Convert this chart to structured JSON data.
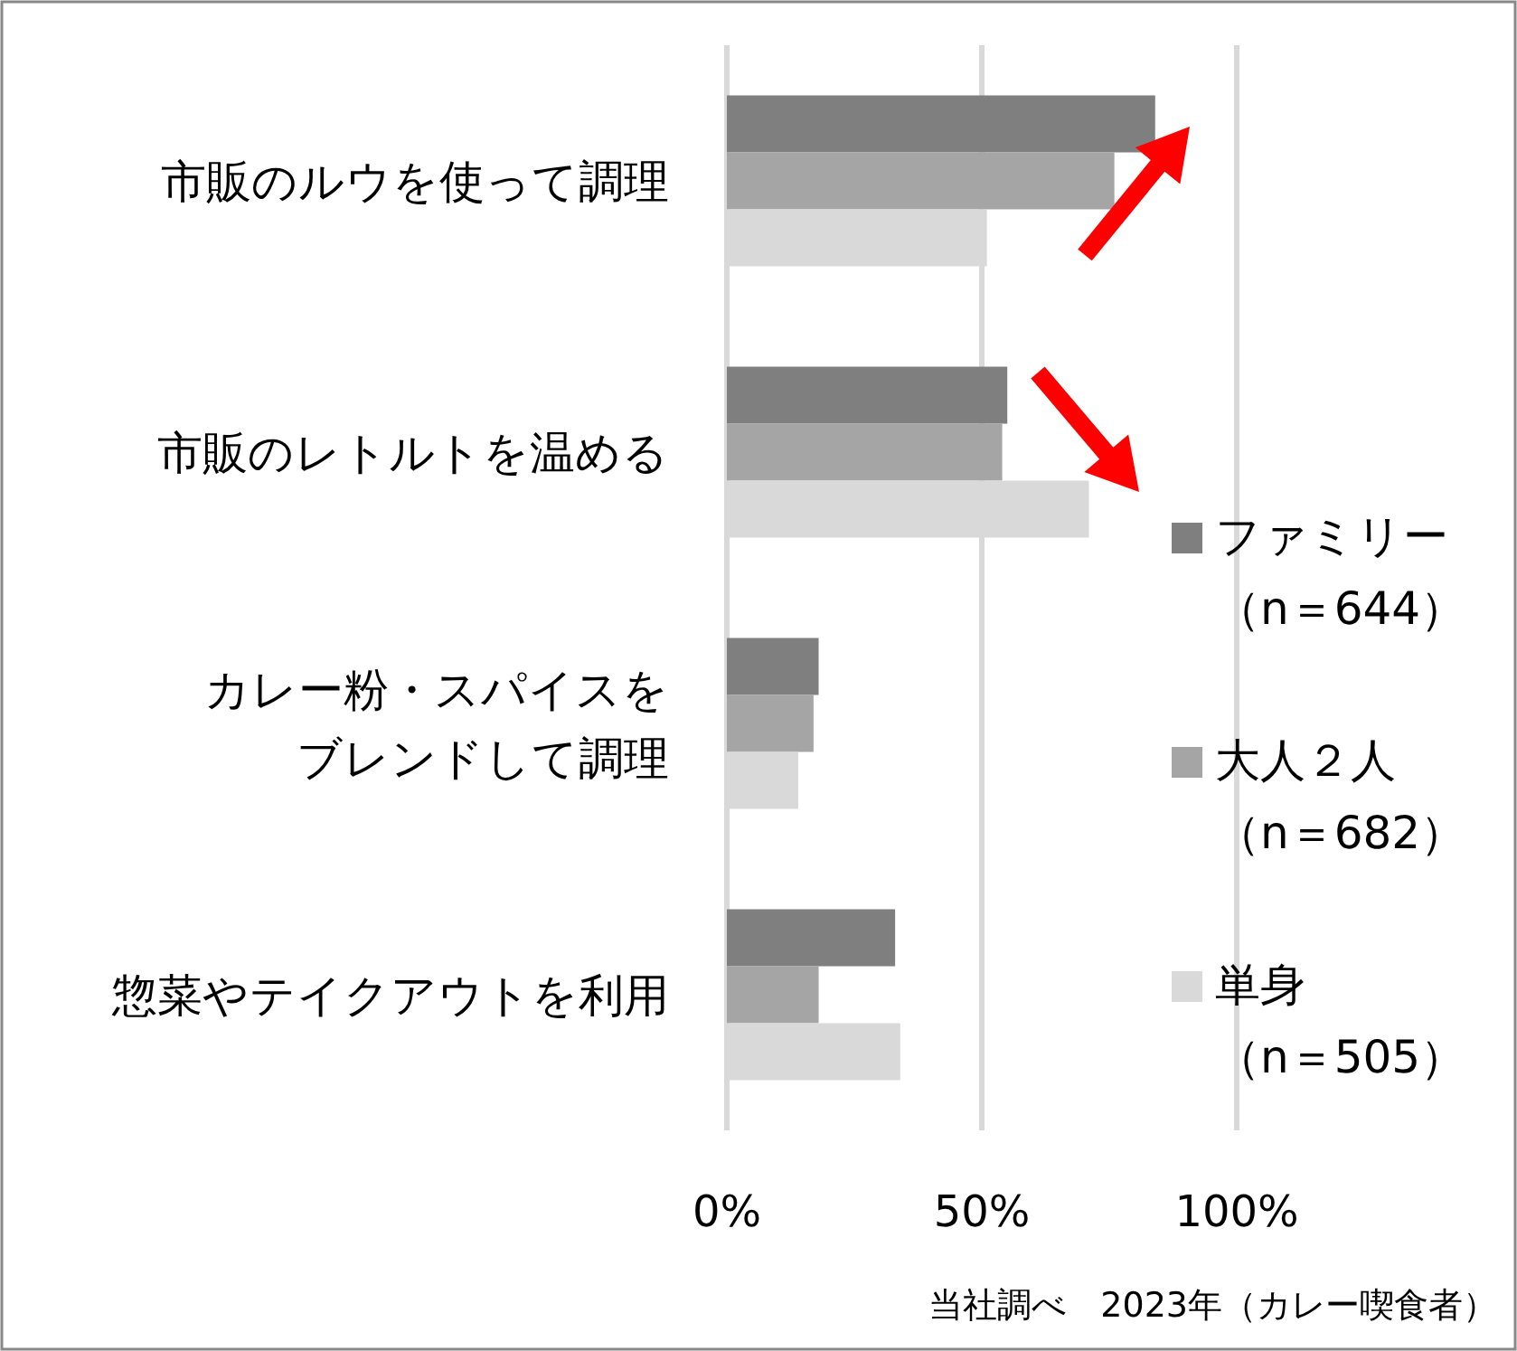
{
  "chart_data": {
    "type": "bar",
    "orientation": "horizontal",
    "categories": [
      "市販のルウを使って調理",
      "市販のレトルトを温める",
      "カレー粉・スパイスをブレンドして調理",
      "惣菜やテイクアウトを利用"
    ],
    "series": [
      {
        "name": "ファミリー（n＝644）",
        "color": "#7f7f7f",
        "values": [
          84,
          55,
          18,
          33
        ]
      },
      {
        "name": "大人２人（n＝682）",
        "color": "#a5a5a5",
        "values": [
          76,
          54,
          17,
          18
        ]
      },
      {
        "name": "単身（n＝505）",
        "color": "#d9d9d9",
        "values": [
          51,
          71,
          14,
          34
        ]
      }
    ],
    "xlim": [
      0,
      100
    ],
    "xticks": [
      {
        "value": 0,
        "label": "0%"
      },
      {
        "value": 50,
        "label": "50%"
      },
      {
        "value": 100,
        "label": "100%"
      }
    ],
    "grid": "x",
    "legend": "right",
    "annotations": [
      "当社調べ　2023年（カレー喫食者）"
    ]
  }
}
